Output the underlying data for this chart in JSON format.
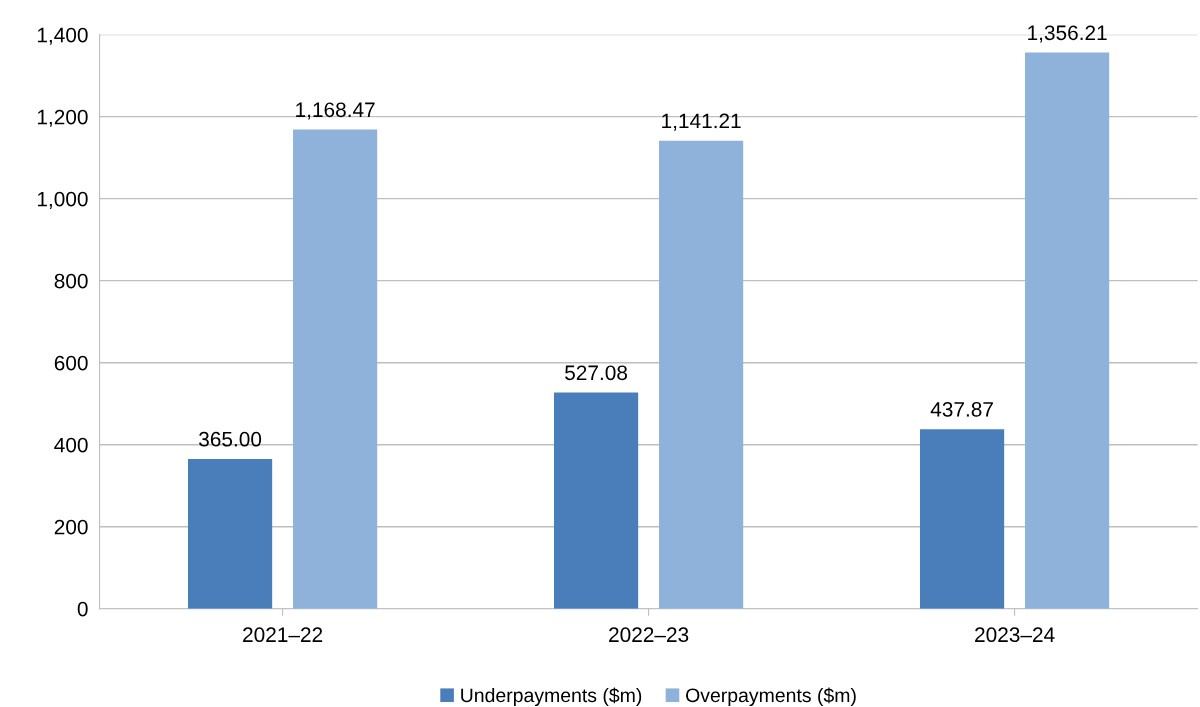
{
  "chart_data": {
    "type": "bar",
    "categories": [
      "2021–22",
      "2022–23",
      "2023–24"
    ],
    "series": [
      {
        "name": "Underpayments ($m)",
        "color": "#4a7ebb",
        "values": [
          365.0,
          527.08,
          437.87
        ],
        "value_labels": [
          "365.00",
          "527.08",
          "437.87"
        ]
      },
      {
        "name": "Overpayments ($m)",
        "color": "#8eb2da",
        "values": [
          1168.47,
          1141.21,
          1356.21
        ],
        "value_labels": [
          "1,168.47",
          "1,141.21",
          "1,356.21"
        ]
      }
    ],
    "ylim": [
      0,
      1400
    ],
    "yticks": [
      0,
      200,
      400,
      600,
      800,
      {
        "value": 1000,
        "label": "1,000"
      },
      {
        "value": 1200,
        "label": "1,200"
      },
      {
        "value": 1400,
        "label": "1,400"
      }
    ],
    "grid": "y",
    "legend": "bottom"
  }
}
